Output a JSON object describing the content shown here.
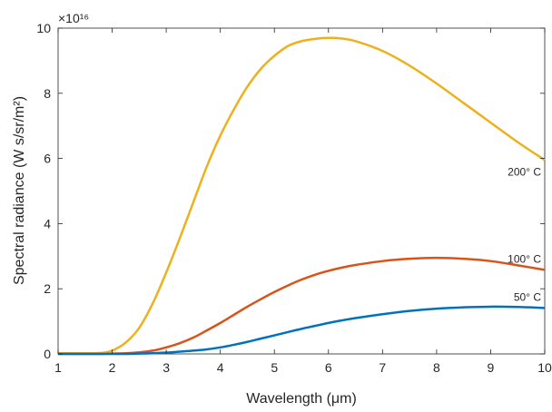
{
  "chart_data": {
    "type": "line",
    "title": "",
    "xlabel": "Wavelength (μm)",
    "ylabel": "Spectral radiance (W s/sr/m²)",
    "y_exponent_label": "×10¹⁶",
    "xlim": [
      1,
      10
    ],
    "ylim": [
      0,
      10
    ],
    "y_scale_factor": 1e+16,
    "x_ticks": [
      1,
      2,
      3,
      4,
      5,
      6,
      7,
      8,
      9,
      10
    ],
    "y_ticks": [
      0,
      2,
      4,
      6,
      8,
      10
    ],
    "grid": false,
    "legend": "inline labels",
    "x": [
      1,
      1.5,
      1.8,
      2,
      2.25,
      2.5,
      2.75,
      3,
      3.25,
      3.5,
      3.75,
      4,
      4.25,
      4.5,
      4.75,
      5,
      5.25,
      5.5,
      5.75,
      6,
      6.25,
      6.5,
      7,
      7.5,
      8,
      8.5,
      9,
      9.5,
      10
    ],
    "series": [
      {
        "name": "200° C",
        "color": "#EDB120",
        "values": [
          0.02,
          0.02,
          0.03,
          0.1,
          0.35,
          0.8,
          1.55,
          2.5,
          3.55,
          4.65,
          5.75,
          6.7,
          7.5,
          8.2,
          8.75,
          9.15,
          9.45,
          9.6,
          9.67,
          9.7,
          9.68,
          9.6,
          9.3,
          8.85,
          8.3,
          7.7,
          7.1,
          6.5,
          5.95
        ]
      },
      {
        "name": "100° C",
        "color": "#D95319",
        "values": [
          0.0,
          0.0,
          0.0,
          0.01,
          0.02,
          0.05,
          0.1,
          0.2,
          0.33,
          0.5,
          0.72,
          0.95,
          1.2,
          1.45,
          1.68,
          1.9,
          2.1,
          2.28,
          2.43,
          2.55,
          2.65,
          2.73,
          2.85,
          2.92,
          2.95,
          2.92,
          2.85,
          2.72,
          2.58
        ]
      },
      {
        "name": "50° C",
        "color": "#0072BD",
        "values": [
          0.0,
          0.0,
          0.0,
          0.0,
          0.0,
          0.01,
          0.02,
          0.04,
          0.07,
          0.1,
          0.14,
          0.2,
          0.28,
          0.37,
          0.47,
          0.57,
          0.67,
          0.77,
          0.86,
          0.95,
          1.03,
          1.1,
          1.22,
          1.32,
          1.39,
          1.43,
          1.45,
          1.44,
          1.41
        ]
      }
    ]
  }
}
